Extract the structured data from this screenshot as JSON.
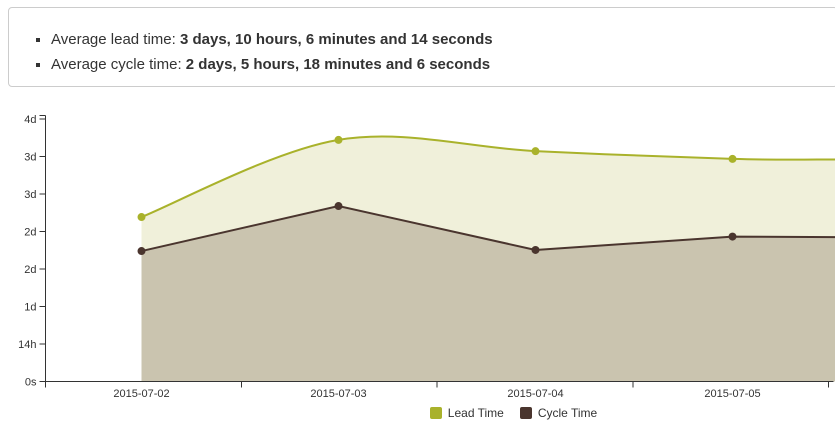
{
  "summary": {
    "items": [
      {
        "label": "Average lead time:",
        "value": "3 days, 10 hours, 6 minutes and 14 seconds"
      },
      {
        "label": "Average cycle time:",
        "value": "2 days, 5 hours, 18 minutes and 6 seconds"
      }
    ]
  },
  "chart_data": {
    "type": "area",
    "title": "",
    "categories": [
      "2015-07-02",
      "2015-07-03",
      "2015-07-04",
      "2015-07-05"
    ],
    "unit": "hours",
    "series": [
      {
        "name": "Lead Time",
        "values": [
          61.4,
          90.2,
          86.0,
          83.1
        ],
        "edge_value": 82.9,
        "line_color": "#a9b22b",
        "fill_color": "#f0f0da",
        "curve": "spline"
      },
      {
        "name": "Cycle Time",
        "values": [
          48.7,
          65.5,
          49.1,
          54.1
        ],
        "edge_value": 53.9,
        "line_color": "#4a352e",
        "fill_color": "#cac4af",
        "curve": "line"
      }
    ],
    "y_axis": {
      "tick_labels_top_to_bottom": [
        "4d",
        "3d",
        "3d",
        "2d",
        "2d",
        "1d",
        "14h",
        "0s"
      ],
      "tick_hours_top_to_bottom": [
        98,
        84,
        70,
        56,
        42,
        28,
        14,
        0
      ],
      "max_hours": 98,
      "min_hours": 0
    },
    "x_axis": {
      "labels": [
        "2015-07-02",
        "2015-07-03",
        "2015-07-04",
        "2015-07-05"
      ]
    },
    "legend": {
      "position": "bottom",
      "items": [
        "Lead Time",
        "Cycle Time"
      ]
    },
    "axis_color": "#333333",
    "label_color": "#333333",
    "grid": false
  }
}
